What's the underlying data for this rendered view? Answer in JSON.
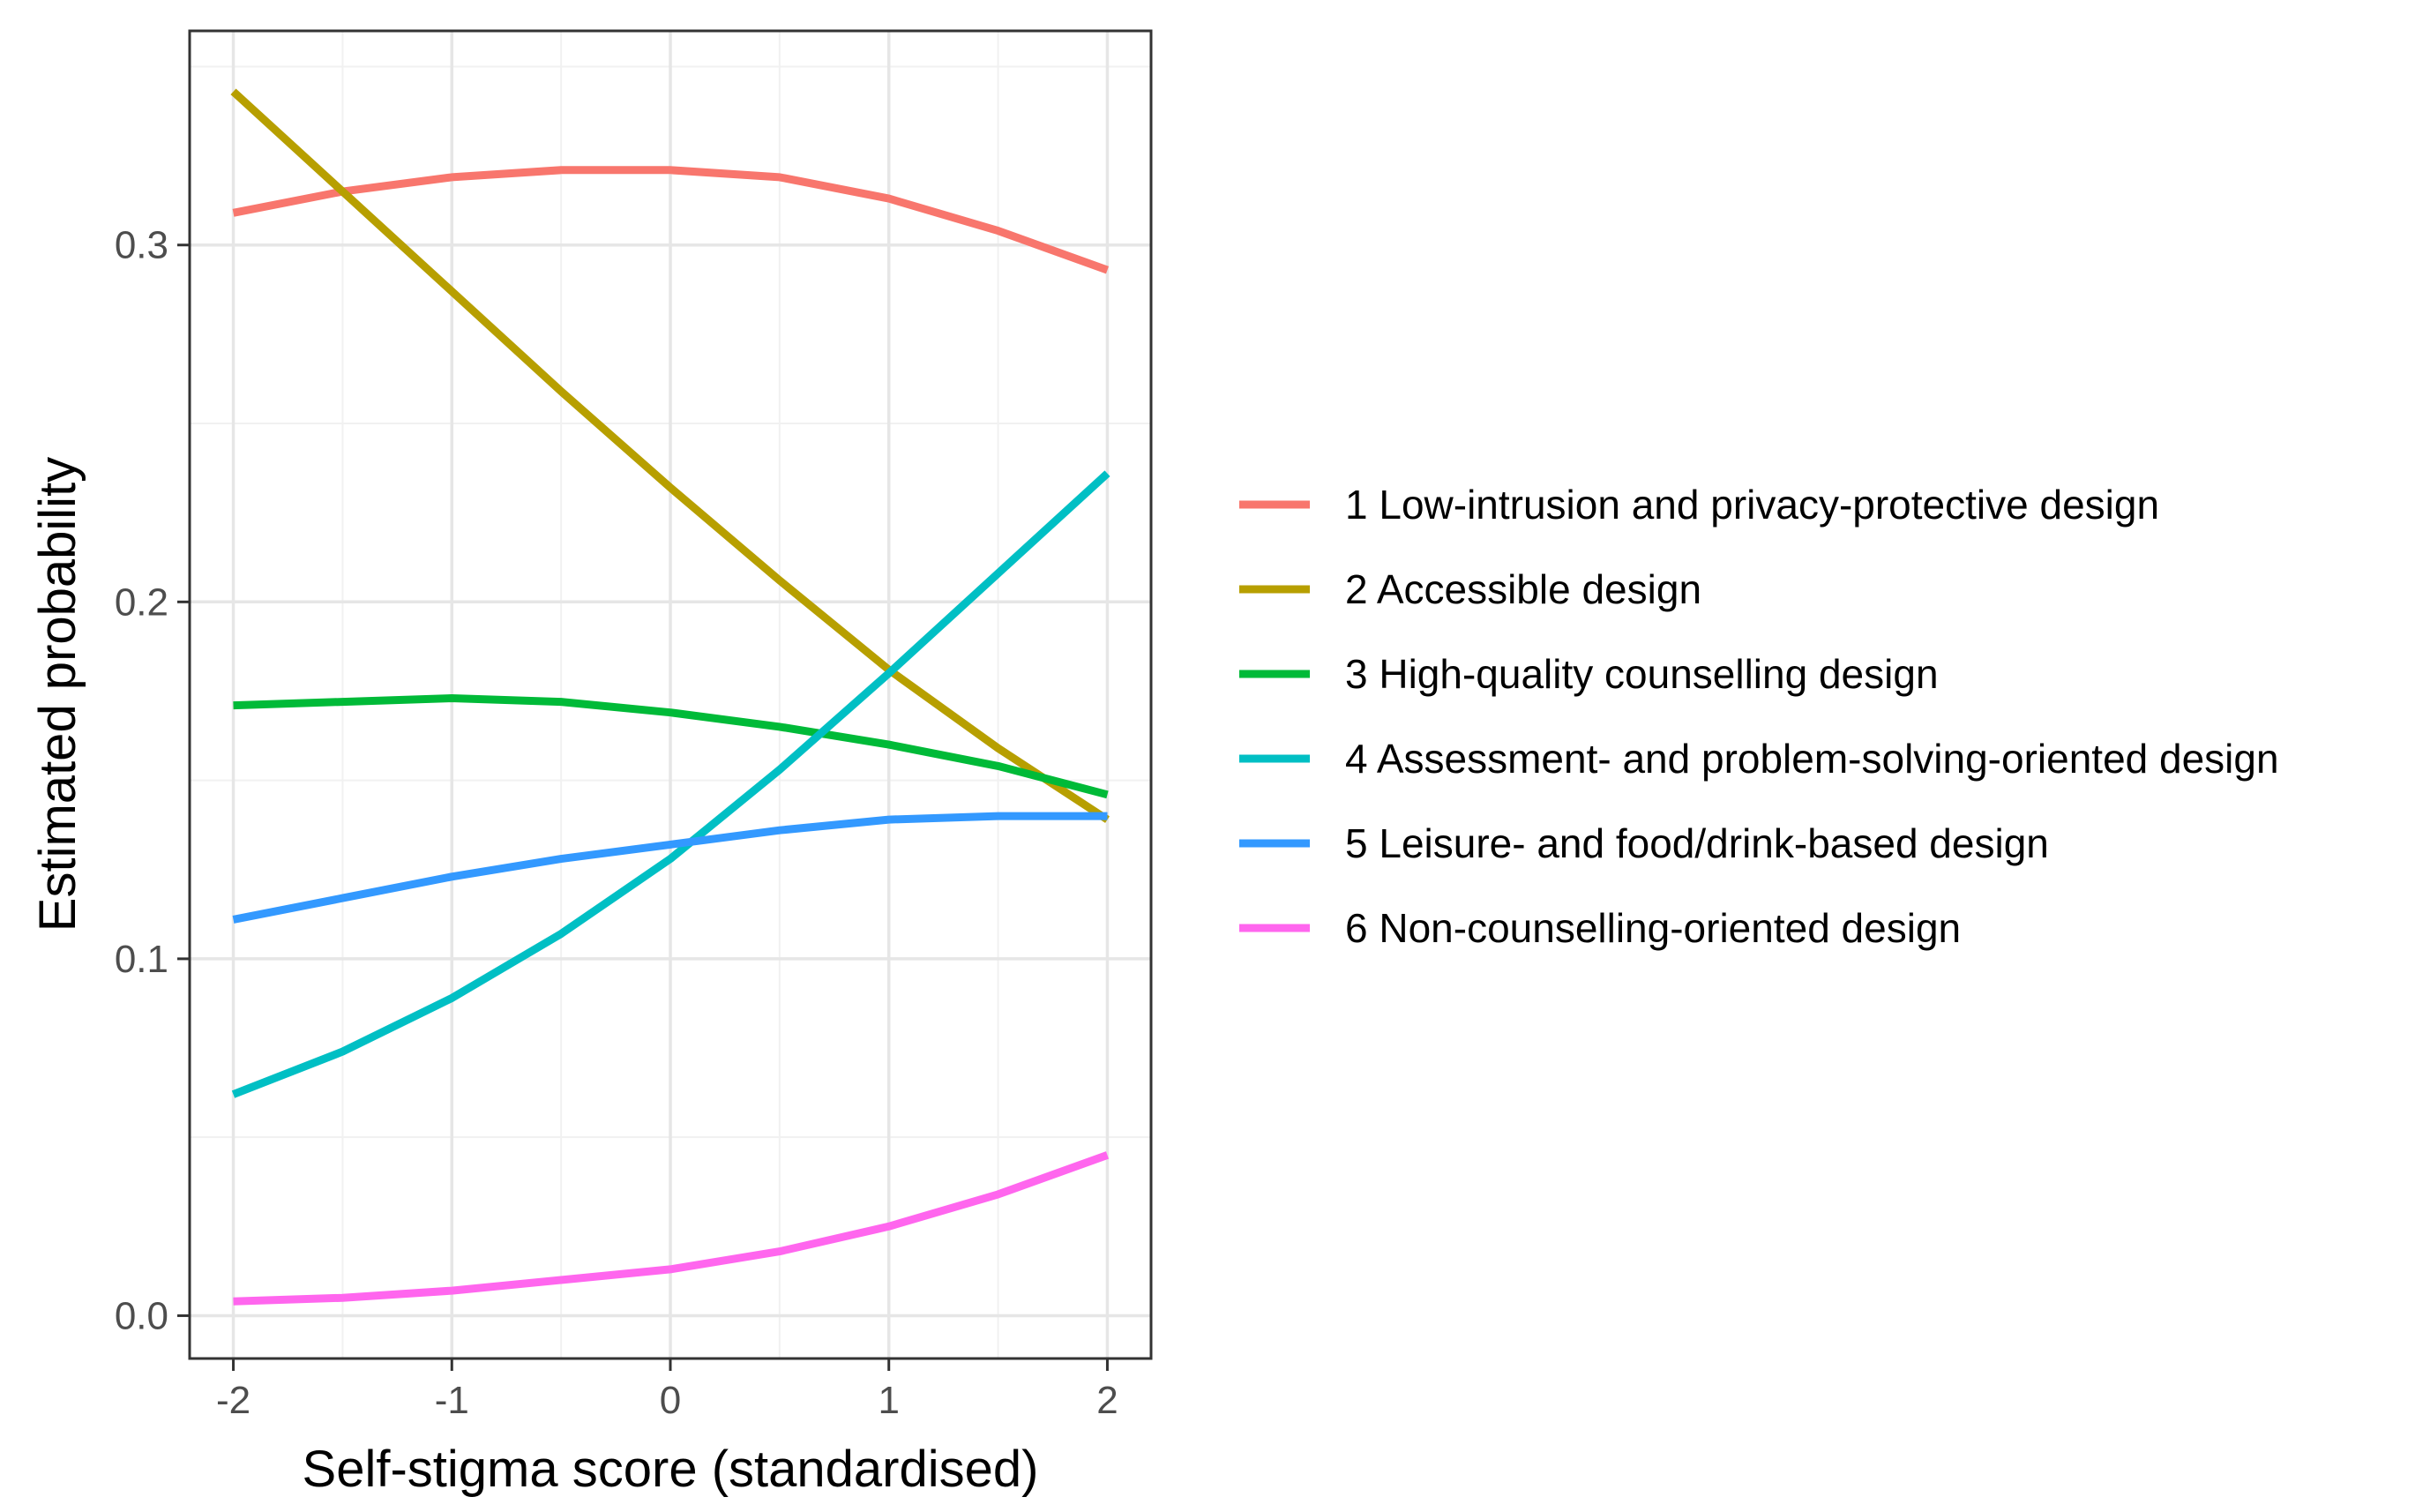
{
  "chart_data": {
    "type": "line",
    "title": "",
    "xlabel": "Self-stigma score (standardised)",
    "ylabel": "Estimated probability",
    "xlim": [
      -2.2,
      2.2
    ],
    "ylim": [
      -0.012,
      0.36
    ],
    "x_ticks": [
      -2,
      -1,
      0,
      1,
      2
    ],
    "x_tick_labels": [
      "-2",
      "-1",
      "0",
      "1",
      "2"
    ],
    "y_ticks": [
      0.0,
      0.1,
      0.2,
      0.3
    ],
    "y_tick_labels": [
      "0.0",
      "0.1",
      "0.2",
      "0.3"
    ],
    "grid": true,
    "legend_position": "right",
    "x": [
      -2,
      -1.5,
      -1,
      -0.5,
      0,
      0.5,
      1,
      1.5,
      2
    ],
    "series": [
      {
        "name": "1 Low-intrusion and privacy-protective design",
        "color": "#F8766D",
        "values": [
          0.309,
          0.315,
          0.319,
          0.321,
          0.321,
          0.319,
          0.313,
          0.304,
          0.293
        ]
      },
      {
        "name": "2 Accessible design",
        "color": "#B79F00",
        "values": [
          0.343,
          0.315,
          0.287,
          0.259,
          0.232,
          0.206,
          0.181,
          0.159,
          0.139
        ]
      },
      {
        "name": "3 High-quality counselling design",
        "color": "#00BA38",
        "values": [
          0.171,
          0.172,
          0.173,
          0.172,
          0.169,
          0.165,
          0.16,
          0.154,
          0.146
        ]
      },
      {
        "name": "4 Assessment- and problem-solving-oriented design",
        "color": "#00BFC4",
        "values": [
          0.062,
          0.074,
          0.089,
          0.107,
          0.128,
          0.153,
          0.18,
          0.208,
          0.236
        ]
      },
      {
        "name": "5 Leisure- and food/drink-based design",
        "color": "#3399FF",
        "values": [
          0.111,
          0.117,
          0.123,
          0.128,
          0.132,
          0.136,
          0.139,
          0.14,
          0.14
        ]
      },
      {
        "name": "6 Non-counselling-oriented design",
        "color": "#FF66EE",
        "values": [
          0.004,
          0.005,
          0.007,
          0.01,
          0.013,
          0.018,
          0.025,
          0.034,
          0.045
        ]
      }
    ]
  }
}
